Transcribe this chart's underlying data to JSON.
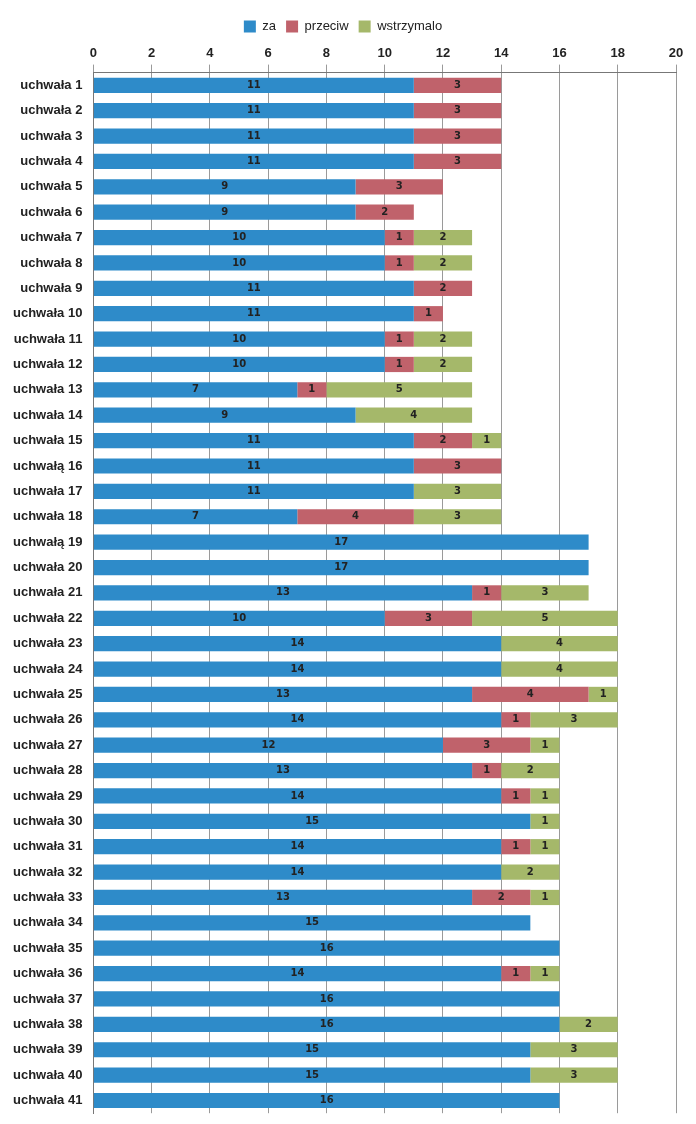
{
  "chart_data": {
    "type": "bar",
    "orientation": "horizontal",
    "stacked": true,
    "categories": [
      "uchwała 1",
      "uchwała 2",
      "uchwała 3",
      "uchwała 4",
      "uchwała 5",
      "uchwała 6",
      "uchwała 7",
      "uchwała 8",
      "uchwała 9",
      "uchwała 10",
      "uchwała 11",
      "uchwała 12",
      "uchwała 13",
      "uchwała 14",
      "uchwała 15",
      "uchwałą 16",
      "uchwała 17",
      "uchwała 18",
      "uchwałą 19",
      "uchwała 20",
      "uchwała 21",
      "uchwała 22",
      "uchwała 23",
      "uchwała 24",
      "uchwała 25",
      "uchwała 26",
      "uchwała 27",
      "uchwała 28",
      "uchwała 29",
      "uchwała 30",
      "uchwała 31",
      "uchwała 32",
      "uchwała 33",
      "uchwała 34",
      "uchwała 35",
      "uchwała 36",
      "uchwała 37",
      "uchwała 38",
      "uchwała 39",
      "uchwała 40",
      "uchwała 41"
    ],
    "series": [
      {
        "name": "za",
        "color": "#2e8bc9",
        "values": [
          11,
          11,
          11,
          11,
          9,
          9,
          10,
          10,
          11,
          11,
          10,
          10,
          7,
          9,
          11,
          11,
          11,
          7,
          17,
          17,
          13,
          10,
          14,
          14,
          13,
          14,
          12,
          13,
          14,
          15,
          14,
          14,
          13,
          15,
          16,
          14,
          16,
          16,
          15,
          15,
          16
        ]
      },
      {
        "name": "przeciw",
        "color": "#c0626b",
        "values": [
          3,
          3,
          3,
          3,
          3,
          2,
          1,
          1,
          2,
          1,
          1,
          1,
          1,
          null,
          2,
          3,
          null,
          4,
          null,
          null,
          1,
          3,
          null,
          null,
          4,
          1,
          3,
          1,
          1,
          null,
          1,
          null,
          2,
          null,
          null,
          1,
          null,
          null,
          null,
          null,
          null
        ]
      },
      {
        "name": "wstrzymalo",
        "color": "#a5b86a",
        "values": [
          null,
          null,
          null,
          null,
          null,
          null,
          2,
          2,
          null,
          null,
          2,
          2,
          5,
          4,
          1,
          null,
          3,
          3,
          null,
          null,
          3,
          5,
          4,
          4,
          1,
          3,
          1,
          2,
          1,
          1,
          1,
          2,
          1,
          null,
          null,
          1,
          null,
          2,
          3,
          3,
          null
        ]
      }
    ],
    "xlim": [
      0,
      20
    ],
    "xticks": [
      0,
      2,
      4,
      6,
      8,
      10,
      12,
      14,
      16,
      18,
      20
    ],
    "grid": "x",
    "legend": "top",
    "data_labels": true
  }
}
